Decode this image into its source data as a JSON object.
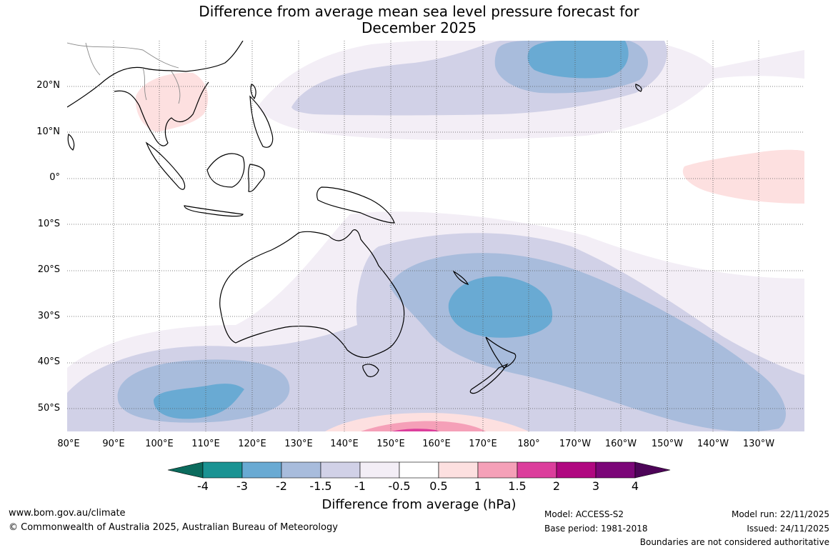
{
  "title": {
    "line1": "Difference from average mean sea level pressure forecast for",
    "line2": "December 2025"
  },
  "axes": {
    "lat_labels": [
      "20°N",
      "10°N",
      "0°",
      "10°S",
      "20°S",
      "30°S",
      "40°S",
      "50°S"
    ],
    "lon_labels": [
      "80°E",
      "90°E",
      "100°E",
      "110°E",
      "120°E",
      "130°E",
      "140°E",
      "150°E",
      "160°E",
      "170°E",
      "180°",
      "170°W",
      "160°W",
      "150°W",
      "140°W",
      "130°W"
    ]
  },
  "colorbar": {
    "ticks": [
      "-4",
      "-3",
      "-2",
      "-1.5",
      "-1",
      "-0.5",
      "0.5",
      "1",
      "1.5",
      "2",
      "3",
      "4"
    ],
    "colors": [
      "#0b6b5d",
      "#1a9393",
      "#69aad3",
      "#a8bcdc",
      "#d1d1e7",
      "#f3eef6",
      "#ffffff",
      "#fde0e0",
      "#f5a0b8",
      "#dc3e9c",
      "#b00880",
      "#7b0678",
      "#4d0458"
    ],
    "title": "Difference from average (hPa)"
  },
  "footer": {
    "website": "www.bom.gov.au/climate",
    "copyright": "© Commonwealth of Australia 2025, Australian Bureau of Meteorology",
    "model": "Model: ACCESS-S2",
    "base_period": "Base period: 1981-2018",
    "model_run": "Model run: 22/11/2025",
    "issued": "Issued: 24/11/2025",
    "disclaimer": "Boundaries are not considered authoritative"
  },
  "colors": {
    "land_outline": "#000000",
    "grid": "#555555",
    "frame": "#000000"
  }
}
